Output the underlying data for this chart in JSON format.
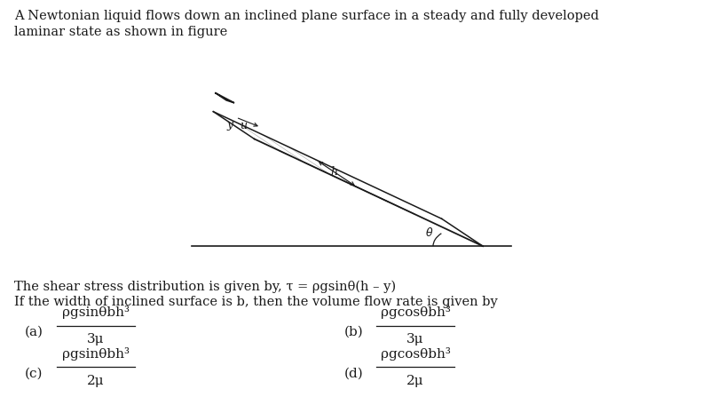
{
  "background_color": "#ffffff",
  "title_line1": "A Newtonian liquid flows down an inclined plane surface in a steady and fully developed",
  "title_line2": "laminar state as shown in figure",
  "shear_stress_text": "The shear stress distribution is given by, τ = ρgsinθ(h – y)",
  "width_text": "If the width of inclined surface is b, then the volume flow rate is given by",
  "options": [
    {
      "label": "a",
      "num": "ρgsinθbh³",
      "den": "3μ"
    },
    {
      "label": "b",
      "num": "ρgcosθbh³",
      "den": "3μ"
    },
    {
      "label": "c",
      "num": "ρgsinθbh³",
      "den": "2μ"
    },
    {
      "label": "d",
      "num": "ρgcosθbh³",
      "den": "2μ"
    }
  ],
  "fig_width": 8.0,
  "fig_height": 4.47,
  "dpi": 100,
  "text_color": "#1a1a1a",
  "font_size_main": 10.5,
  "font_size_option": 11,
  "font_size_label": 9
}
